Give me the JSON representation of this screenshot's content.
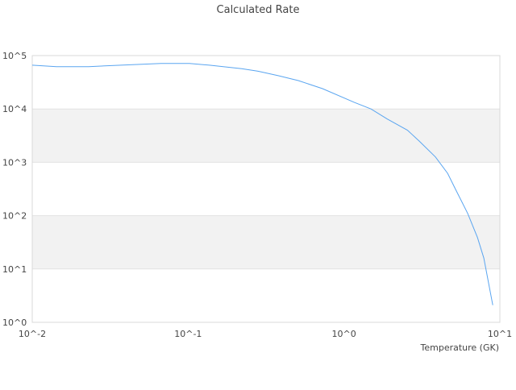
{
  "chart_data": {
    "type": "line",
    "title": "Calculated Rate",
    "xlabel": "Temperature (GK)",
    "ylabel": "",
    "xscale": "log",
    "yscale": "log",
    "xlim": [
      0.01,
      10
    ],
    "ylim": [
      1,
      100000
    ],
    "x_ticks": [
      "10^-2",
      "10^-1",
      "10^0",
      "10^1"
    ],
    "y_ticks": [
      "10^0",
      "10^1",
      "10^2",
      "10^3",
      "10^4",
      "10^5"
    ],
    "grid": "alternating horizontal bands",
    "band_color": "#f2f2f2",
    "line_color": "#5aa5f0",
    "series": [
      {
        "x": [
          0.01,
          0.0143,
          0.023,
          0.037,
          0.067,
          0.102,
          0.137,
          0.221,
          0.281,
          0.378,
          0.509,
          0.728,
          1.17,
          1.49,
          1.89,
          2.55,
          3.04,
          3.86,
          4.62,
          5.2,
          6.22,
          7.18,
          7.89,
          9.0
        ],
        "y": [
          66000,
          62000,
          62000,
          66000,
          71000,
          71000,
          66000,
          57000,
          51000,
          42000,
          34000,
          24000,
          13200,
          10000,
          6500,
          4000,
          2500,
          1260,
          620,
          310,
          110,
          39,
          16,
          2.1
        ]
      }
    ]
  }
}
